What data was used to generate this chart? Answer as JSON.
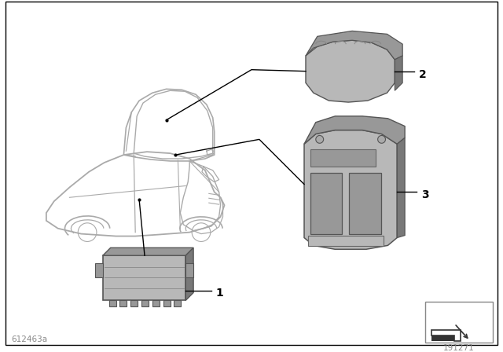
{
  "bg_color": "#ffffff",
  "border_color": "#000000",
  "line_color": "#000000",
  "car_line_color": "#aaaaaa",
  "part_color_light": "#b8b8b8",
  "part_color_mid": "#989898",
  "part_color_dark": "#787878",
  "bottom_left_text": "612463a",
  "bottom_right_text": "191271",
  "label_1": "1",
  "label_2": "2",
  "label_3": "3"
}
